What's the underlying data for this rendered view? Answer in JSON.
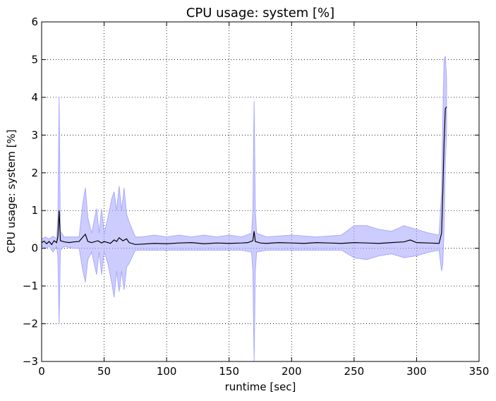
{
  "chart_data": {
    "type": "line",
    "title": "CPU usage: system [%]",
    "xlabel": "runtime [sec]",
    "ylabel": "CPU usage: system [%]",
    "xlim": [
      0,
      350
    ],
    "ylim": [
      -3,
      6
    ],
    "xticks": [
      0,
      50,
      100,
      150,
      200,
      250,
      300,
      350
    ],
    "yticks": [
      -3,
      -2,
      -1,
      0,
      1,
      2,
      3,
      4,
      5,
      6
    ],
    "xtick_labels": [
      "0",
      "50",
      "100",
      "150",
      "200",
      "250",
      "300",
      "350"
    ],
    "ytick_labels": [
      "−3",
      "−2",
      "−1",
      "0",
      "1",
      "2",
      "3",
      "4",
      "5",
      "6"
    ],
    "grid": true,
    "series": [
      {
        "kind": "mean_line",
        "color": "#000000",
        "x": [
          0,
          2,
          4,
          6,
          8,
          10,
          12,
          13,
          14,
          15,
          18,
          22,
          26,
          30,
          33,
          35,
          37,
          40,
          45,
          48,
          50,
          55,
          58,
          60,
          62,
          65,
          68,
          70,
          75,
          80,
          90,
          100,
          110,
          120,
          130,
          140,
          150,
          160,
          165,
          169,
          170,
          171,
          175,
          180,
          190,
          200,
          210,
          220,
          230,
          240,
          250,
          260,
          270,
          280,
          290,
          295,
          300,
          310,
          318,
          320,
          321,
          322,
          323,
          324
        ],
        "y": [
          0.15,
          0.19,
          0.12,
          0.18,
          0.1,
          0.2,
          0.15,
          0.3,
          1.0,
          0.2,
          0.17,
          0.15,
          0.17,
          0.18,
          0.3,
          0.37,
          0.18,
          0.15,
          0.2,
          0.14,
          0.18,
          0.13,
          0.22,
          0.18,
          0.28,
          0.2,
          0.25,
          0.15,
          0.1,
          0.11,
          0.13,
          0.12,
          0.14,
          0.15,
          0.12,
          0.14,
          0.13,
          0.14,
          0.15,
          0.2,
          0.45,
          0.18,
          0.14,
          0.13,
          0.15,
          0.14,
          0.13,
          0.15,
          0.14,
          0.13,
          0.15,
          0.14,
          0.13,
          0.15,
          0.17,
          0.22,
          0.15,
          0.14,
          0.13,
          0.4,
          1.5,
          2.8,
          3.7,
          3.75
        ]
      },
      {
        "kind": "std_band",
        "color": "#aaaaff",
        "x": [
          0,
          3,
          6,
          9,
          12,
          13,
          14,
          15,
          18,
          25,
          30,
          33,
          35,
          37,
          40,
          44,
          46,
          48,
          50,
          53,
          56,
          58,
          60,
          62,
          64,
          66,
          68,
          70,
          75,
          80,
          90,
          100,
          110,
          120,
          130,
          140,
          150,
          160,
          168,
          169,
          170,
          171,
          172,
          180,
          200,
          220,
          240,
          250,
          260,
          270,
          280,
          290,
          300,
          310,
          318,
          320,
          321,
          322,
          323,
          324
        ],
        "upper": [
          0.25,
          0.3,
          0.25,
          0.32,
          0.25,
          0.8,
          4.0,
          0.45,
          0.3,
          0.3,
          0.3,
          1.2,
          1.6,
          0.8,
          0.4,
          1.05,
          0.4,
          1.05,
          0.4,
          0.8,
          1.3,
          1.5,
          1.0,
          1.65,
          1.0,
          1.6,
          0.9,
          0.7,
          0.3,
          0.3,
          0.35,
          0.3,
          0.35,
          0.3,
          0.35,
          0.3,
          0.35,
          0.3,
          0.4,
          1.0,
          3.9,
          1.0,
          0.4,
          0.3,
          0.35,
          0.3,
          0.35,
          0.6,
          0.6,
          0.5,
          0.45,
          0.6,
          0.5,
          0.4,
          0.35,
          1.5,
          3.5,
          5.0,
          5.1,
          4.5
        ],
        "lower": [
          0.05,
          0.0,
          0.05,
          -0.1,
          0.05,
          -0.2,
          -2.0,
          -0.05,
          0.05,
          0.0,
          0.0,
          -0.6,
          -0.9,
          -0.3,
          -0.1,
          -0.7,
          -0.1,
          -0.7,
          -0.1,
          -0.4,
          -0.9,
          -1.3,
          -0.6,
          -1.15,
          -0.6,
          -1.1,
          -0.5,
          -0.4,
          -0.05,
          -0.05,
          -0.05,
          -0.05,
          -0.05,
          -0.05,
          -0.05,
          -0.05,
          -0.05,
          -0.05,
          -0.1,
          -0.6,
          -3.0,
          -0.6,
          -0.1,
          -0.05,
          -0.05,
          -0.05,
          -0.05,
          -0.25,
          -0.3,
          -0.2,
          -0.15,
          -0.25,
          -0.2,
          -0.1,
          -0.05,
          -0.6,
          -0.4,
          0.5,
          2.3,
          3.0
        ]
      }
    ]
  }
}
